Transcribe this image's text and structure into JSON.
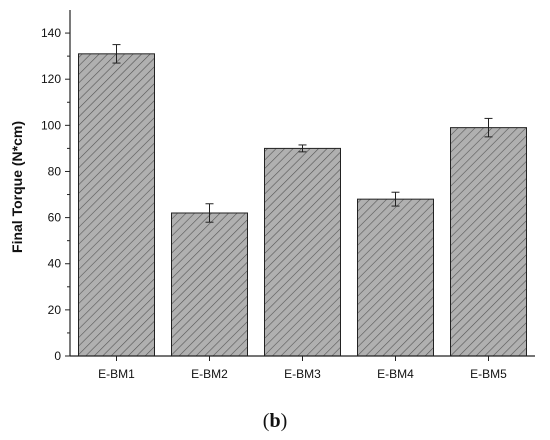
{
  "chart_data": {
    "type": "bar",
    "categories": [
      "E-BM1",
      "E-BM2",
      "E-BM3",
      "E-BM4",
      "E-BM5"
    ],
    "values": [
      131,
      62,
      90,
      68,
      99
    ],
    "errors": [
      4,
      4,
      1.5,
      3,
      4
    ],
    "ylabel": "Final Torque (N*cm)",
    "xlabel": "",
    "ylim": [
      0,
      150
    ],
    "yticks": [
      0,
      20,
      40,
      60,
      80,
      100,
      120,
      140
    ],
    "grid": false,
    "bar_fill": "#b0b0b0",
    "hatch_color": "#555555"
  },
  "panel": {
    "open": "(",
    "letter": "b",
    "close": ")"
  }
}
